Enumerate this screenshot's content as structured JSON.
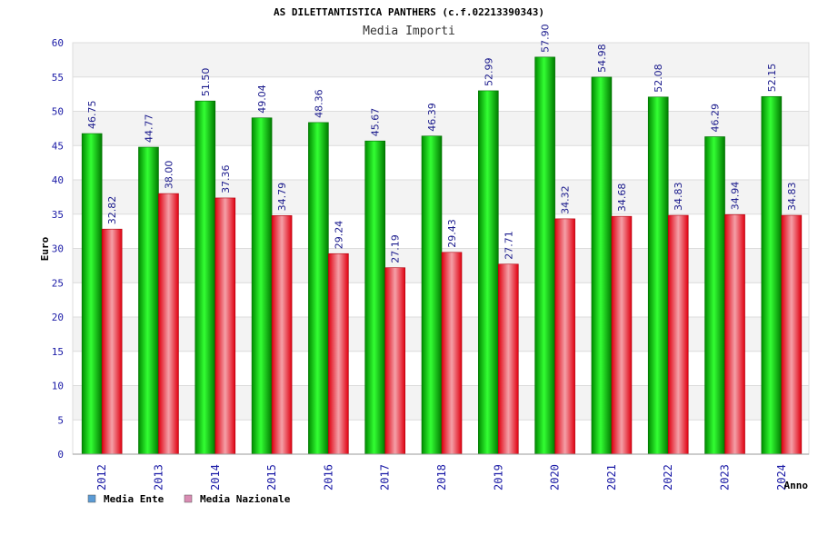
{
  "chart_data": {
    "type": "bar",
    "title": "AS DILETTANTISTICA PANTHERS (c.f.02213390343)",
    "subtitle": "Media Importi",
    "xlabel": "Anno",
    "ylabel": "Euro",
    "ylim": [
      0,
      60
    ],
    "yticks": [
      0,
      5,
      10,
      15,
      20,
      25,
      30,
      35,
      40,
      45,
      50,
      55,
      60
    ],
    "categories": [
      "2012",
      "2013",
      "2014",
      "2015",
      "2016",
      "2017",
      "2018",
      "2019",
      "2020",
      "2021",
      "2022",
      "2023",
      "2024"
    ],
    "series": [
      {
        "name": "Media Ente",
        "color": "#00b400",
        "values": [
          46.75,
          44.77,
          51.5,
          49.04,
          48.36,
          45.67,
          46.39,
          52.99,
          57.9,
          54.98,
          52.08,
          46.29,
          52.15
        ],
        "labels": [
          "46.75",
          "44.77",
          "51.50",
          "49.04",
          "48.36",
          "45.67",
          "46.39",
          "52.99",
          "57.90",
          "54.98",
          "52.08",
          "46.29",
          "52.15"
        ]
      },
      {
        "name": "Media Nazionale",
        "color": "#e8101a",
        "values": [
          32.82,
          38.0,
          37.36,
          34.79,
          29.24,
          27.19,
          29.43,
          27.71,
          34.32,
          34.68,
          34.83,
          34.94,
          34.83
        ],
        "labels": [
          "32.82",
          "38.00",
          "37.36",
          "34.79",
          "29.24",
          "27.19",
          "29.43",
          "27.71",
          "34.32",
          "34.68",
          "34.83",
          "34.94",
          "34.83"
        ]
      }
    ],
    "legend": {
      "placement": "bottom-left",
      "items": [
        {
          "label": "Media Ente",
          "color": "#5b9bd5"
        },
        {
          "label": "Media Nazionale",
          "color": "#d98cb3"
        }
      ]
    },
    "grid": true
  }
}
